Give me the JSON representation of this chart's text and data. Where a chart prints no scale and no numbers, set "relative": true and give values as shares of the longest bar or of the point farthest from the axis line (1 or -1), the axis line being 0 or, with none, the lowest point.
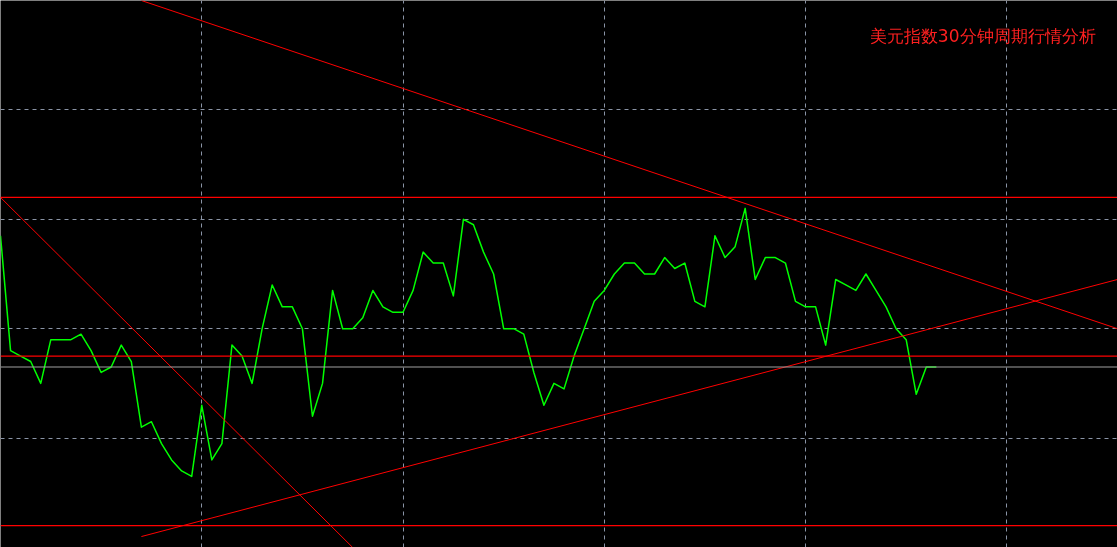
{
  "chart_data": {
    "type": "line",
    "title": "美元指数30分钟周期行情分析",
    "relative": true,
    "tick_labels": false,
    "grid": true,
    "line_style": "solid",
    "categories": [
      null,
      null,
      null,
      null,
      null,
      null,
      null,
      null,
      null,
      null,
      null,
      null,
      null,
      null,
      null,
      null,
      null,
      null,
      null,
      null,
      null,
      null,
      null,
      null,
      null,
      null,
      null,
      null,
      null,
      null,
      null,
      null,
      null,
      null,
      null,
      null,
      null,
      null,
      null,
      null,
      null,
      null,
      null,
      null,
      null,
      null,
      null,
      null,
      null,
      null,
      null,
      null,
      null,
      null,
      null,
      null,
      null,
      null,
      null,
      null,
      null,
      null,
      null,
      null,
      null,
      null,
      null,
      null,
      null,
      null,
      null,
      null,
      null,
      null,
      null,
      null,
      null,
      null,
      null,
      null,
      null,
      null,
      null,
      null,
      null,
      null,
      null,
      null,
      null,
      null,
      null,
      null,
      null,
      null,
      null,
      null,
      null,
      null,
      null,
      null,
      null,
      null,
      null,
      null,
      null,
      null,
      null,
      null,
      null,
      null,
      null,
      null
    ],
    "series": [
      {
        "color": "#00ff00",
        "values": [
          0.57,
          0.36,
          0.35,
          0.34,
          0.3,
          0.38,
          0.38,
          0.38,
          0.39,
          0.36,
          0.32,
          0.33,
          0.37,
          0.34,
          0.22,
          0.23,
          0.19,
          0.16,
          0.14,
          0.13,
          0.26,
          0.16,
          0.19,
          0.37,
          0.35,
          0.3,
          0.4,
          0.48,
          0.44,
          0.44,
          0.4,
          0.24,
          0.3,
          0.47,
          0.4,
          0.4,
          0.42,
          0.47,
          0.44,
          0.43,
          0.43,
          0.47,
          0.54,
          0.52,
          0.52,
          0.46,
          0.6,
          0.59,
          0.54,
          0.5,
          0.4,
          0.4,
          0.39,
          0.32,
          0.26,
          0.3,
          0.29,
          0.35,
          0.4,
          0.45,
          0.47,
          0.5,
          0.52,
          0.52,
          0.5,
          0.5,
          0.53,
          0.51,
          0.52,
          0.45,
          0.44,
          0.57,
          0.53,
          0.55,
          0.62,
          0.49,
          0.53,
          0.53,
          0.52,
          0.45,
          0.44,
          0.44,
          0.37,
          0.49,
          0.48,
          0.47,
          0.5,
          0.47,
          0.44,
          0.4,
          0.38,
          0.28,
          0.33,
          0.33,
          null,
          null,
          null,
          null,
          null,
          null,
          null,
          null,
          null,
          null,
          null,
          null,
          null,
          null,
          null,
          null,
          null,
          null
        ]
      },
      {
        "color": "#ff0000",
        "values": [
          null,
          null,
          null,
          null,
          null,
          null,
          null,
          null,
          null,
          null,
          null,
          null,
          null,
          null,
          1.0,
          null,
          null,
          null,
          null,
          null,
          null,
          null,
          null,
          null,
          null,
          null,
          null,
          null,
          null,
          null,
          null,
          null,
          null,
          null,
          null,
          null,
          null,
          null,
          null,
          null,
          null,
          null,
          null,
          null,
          null,
          null,
          null,
          null,
          null,
          null,
          null,
          null,
          null,
          null,
          null,
          null,
          null,
          null,
          null,
          null,
          null,
          null,
          null,
          null,
          null,
          null,
          null,
          null,
          null,
          null,
          null,
          null,
          null,
          null,
          null,
          null,
          null,
          null,
          null,
          null,
          null,
          null,
          null,
          null,
          null,
          null,
          null,
          null,
          null,
          null,
          null,
          null,
          null,
          null,
          null,
          null,
          null,
          null,
          null,
          null,
          null,
          null,
          null,
          null,
          null,
          null,
          null,
          null,
          null,
          null,
          null,
          0.4
        ]
      },
      {
        "color": "#ff0000",
        "values": [
          0.64,
          null,
          null,
          null,
          null,
          null,
          null,
          null,
          null,
          null,
          null,
          null,
          null,
          null,
          null,
          null,
          null,
          null,
          null,
          null,
          null,
          null,
          null,
          null,
          null,
          null,
          null,
          null,
          null,
          null,
          null,
          null,
          null,
          null,
          null,
          0,
          null,
          null,
          null,
          null,
          null,
          null,
          null,
          null,
          null,
          null,
          null,
          null,
          null,
          null,
          null,
          null,
          null,
          null,
          null,
          null,
          null,
          null,
          null,
          null,
          null,
          null,
          null,
          null,
          null,
          null,
          null,
          null,
          null,
          null,
          null,
          null,
          null,
          null,
          null,
          null,
          null,
          null,
          null,
          null,
          null,
          null,
          null,
          null,
          null,
          null,
          null,
          null,
          null,
          null,
          null,
          null,
          null,
          null,
          null,
          null,
          null,
          null,
          null,
          null,
          null,
          null,
          null,
          null,
          null,
          null,
          null,
          null,
          null,
          null,
          null,
          null
        ]
      },
      {
        "color": "#ff0000",
        "values": [
          null,
          null,
          null,
          null,
          null,
          null,
          null,
          null,
          null,
          null,
          null,
          null,
          null,
          null,
          0.02,
          null,
          null,
          null,
          null,
          null,
          null,
          null,
          null,
          null,
          null,
          null,
          null,
          null,
          null,
          null,
          null,
          null,
          null,
          null,
          null,
          null,
          null,
          null,
          null,
          null,
          null,
          null,
          null,
          null,
          null,
          null,
          null,
          null,
          null,
          null,
          null,
          null,
          null,
          null,
          null,
          null,
          null,
          null,
          null,
          null,
          null,
          null,
          null,
          null,
          null,
          null,
          null,
          null,
          null,
          null,
          null,
          null,
          null,
          null,
          null,
          null,
          null,
          null,
          null,
          null,
          null,
          null,
          null,
          null,
          null,
          null,
          null,
          null,
          null,
          null,
          null,
          null,
          null,
          null,
          null,
          null,
          null,
          null,
          null,
          null,
          null,
          null,
          null,
          null,
          null,
          null,
          null,
          null,
          null,
          null,
          null,
          0.49
        ]
      }
    ],
    "ref_lines": [
      {
        "axis": "y",
        "value": 0.64,
        "color": "#ff0000"
      },
      {
        "axis": "y",
        "value": 0.35,
        "color": "#ff0000"
      },
      {
        "axis": "y",
        "value": 0.33,
        "color": "#a0a0a0"
      },
      {
        "axis": "y",
        "value": 0.04,
        "color": "#ff0000"
      }
    ]
  }
}
